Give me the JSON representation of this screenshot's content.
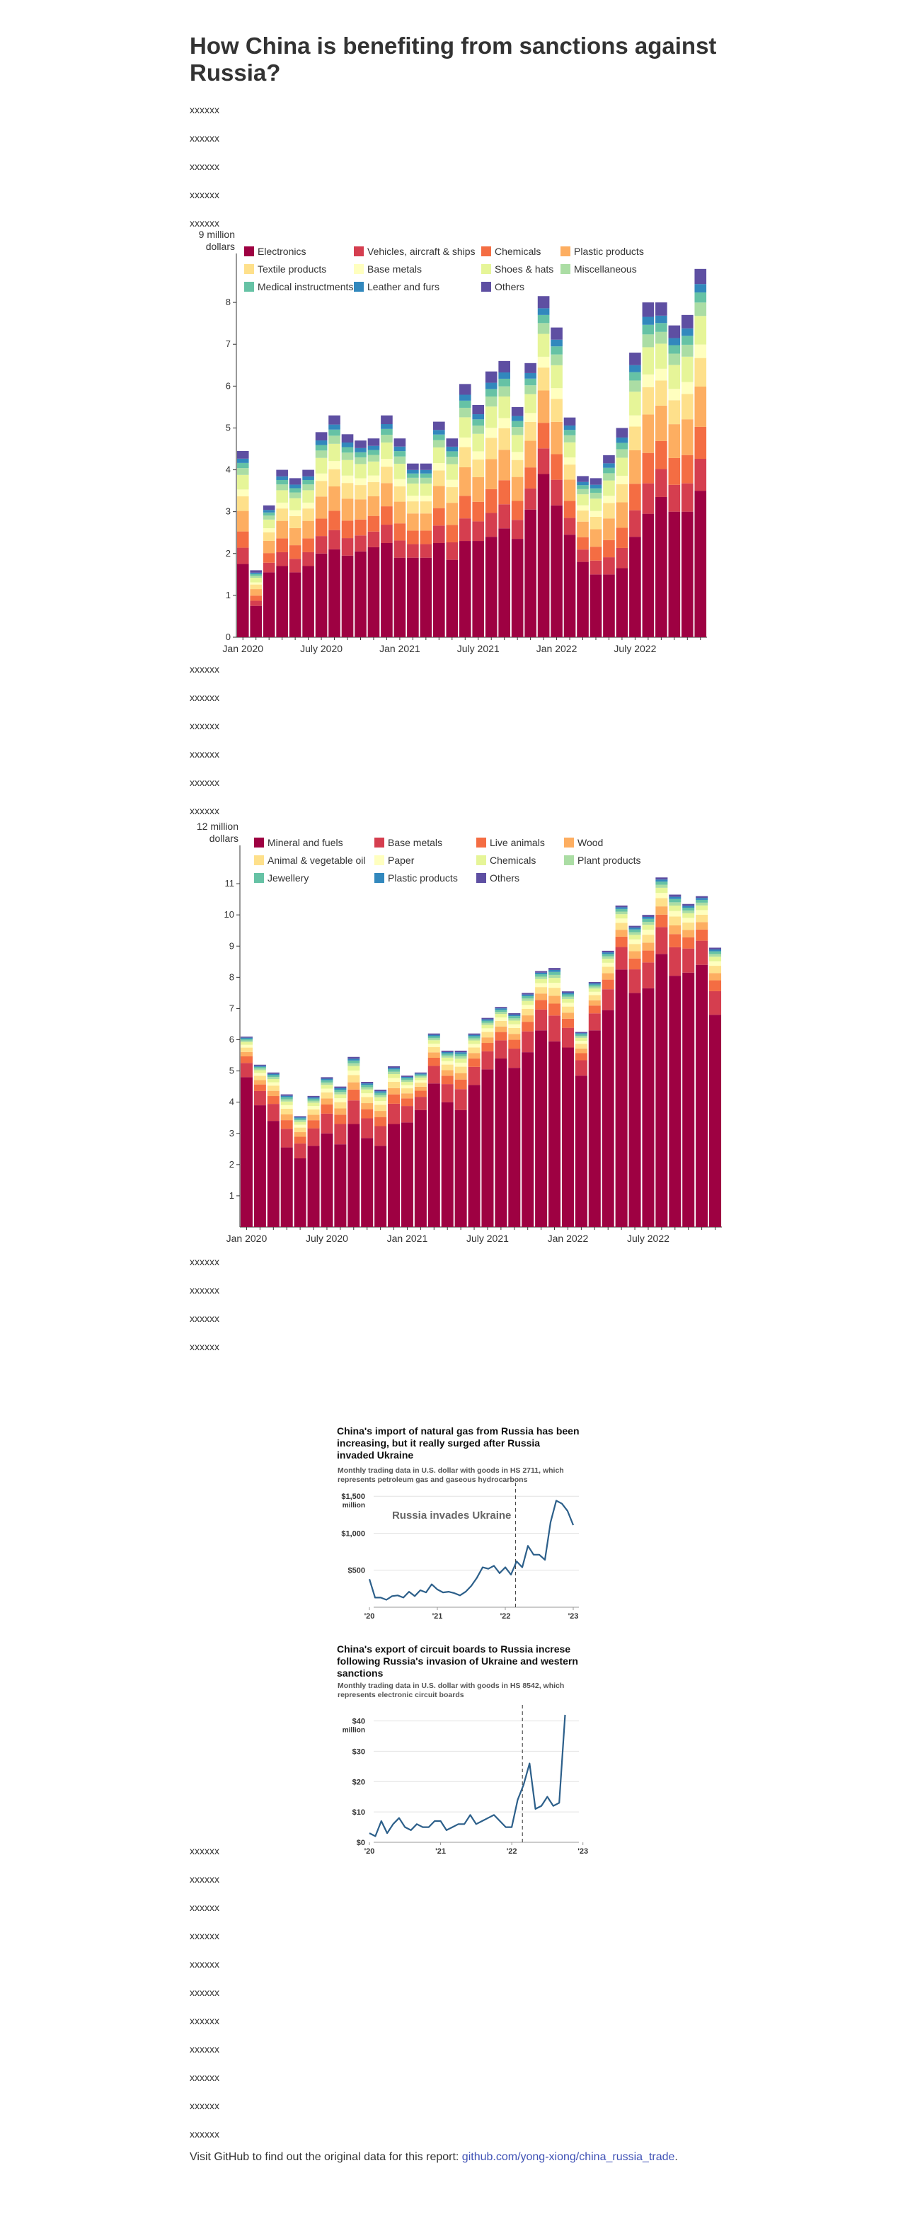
{
  "page": {
    "title": "How China is benefiting from sanctions against Russia?",
    "paragraphs_1": [
      "xxxxxx",
      "xxxxxx",
      "xxxxxx",
      "xxxxxx",
      "xxxxxx"
    ],
    "paragraphs_2": [
      "xxxxxx",
      "xxxxxx",
      "xxxxxx",
      "xxxxxx",
      "xxxxxx",
      "xxxxxx"
    ],
    "paragraphs_3": [
      "xxxxxx",
      "xxxxxx",
      "xxxxxx",
      "xxxxxx"
    ],
    "paragraphs_4": [
      "xxxxxx",
      "xxxxxx",
      "xxxxxx",
      "xxxxxx",
      "xxxxxx",
      "xxxxxx",
      "xxxxxx",
      "xxxxxx",
      "xxxxxx",
      "xxxxxx",
      "xxxxxx"
    ],
    "footer_text": "Visit GitHub to find out the original data for this report: ",
    "footer_link": "github.com/yong-xiong/china_russia_trade",
    "footer_end": "."
  },
  "colors": {
    "palette": [
      "#9e0142",
      "#d53e4f",
      "#f46d43",
      "#fdae61",
      "#fee08b",
      "#ffffbf",
      "#e6f598",
      "#abdda4",
      "#66c2a5",
      "#3288bd",
      "#5e4fa2"
    ],
    "line": "#2c5f8a"
  },
  "chart_data": [
    {
      "type": "bar",
      "stacked": true,
      "ylabel_top": "9 million",
      "ylabel_unit": "dollars",
      "ylim": [
        0,
        9
      ],
      "yticks": [
        "0",
        "1",
        "2",
        "3",
        "4",
        "5",
        "6",
        "7",
        "8"
      ],
      "xtick_labels": [
        "Jan 2020",
        "July 2020",
        "Jan 2021",
        "July 2021",
        "Jan 2022",
        "July 2022"
      ],
      "totals": [
        4.45,
        1.6,
        3.15,
        4.0,
        3.8,
        4.0,
        4.9,
        5.3,
        4.85,
        4.7,
        4.75,
        5.3,
        4.75,
        4.15,
        4.15,
        5.15,
        4.75,
        6.05,
        5.55,
        6.35,
        6.6,
        5.5,
        6.55,
        8.15,
        7.4,
        5.25,
        3.85,
        3.8,
        4.35,
        5.0,
        6.8,
        8.0,
        8.0,
        7.45,
        7.7,
        8.8
      ],
      "base_values": [
        1.75,
        0.75,
        1.55,
        1.7,
        1.55,
        1.7,
        2.0,
        2.1,
        1.95,
        2.05,
        2.15,
        2.25,
        1.9,
        1.9,
        1.9,
        2.25,
        1.85,
        2.3,
        2.3,
        2.4,
        2.6,
        2.35,
        3.05,
        3.9,
        3.15,
        2.45,
        1.8,
        1.5,
        1.5,
        1.65,
        2.4,
        2.95,
        3.35,
        3.0,
        3.0,
        3.5
      ],
      "shares": [
        0.34,
        0.095,
        0.095,
        0.12,
        0.085,
        0.04,
        0.085,
        0.04,
        0.03,
        0.025,
        0.045
      ],
      "legend": [
        {
          "name": "Electronics",
          "color": "#9e0142"
        },
        {
          "name": "Vehicles, aircraft & ships",
          "color": "#d53e4f"
        },
        {
          "name": "Chemicals",
          "color": "#f46d43"
        },
        {
          "name": "Plastic products",
          "color": "#fdae61"
        },
        {
          "name": "Textile products",
          "color": "#fee08b"
        },
        {
          "name": "Base metals",
          "color": "#ffffbf"
        },
        {
          "name": "Shoes & hats",
          "color": "#e6f598"
        },
        {
          "name": "Miscellaneous",
          "color": "#abdda4"
        },
        {
          "name": "Medical instructments",
          "color": "#66c2a5"
        },
        {
          "name": "Leather and furs",
          "color": "#3288bd"
        },
        {
          "name": "Others",
          "color": "#5e4fa2"
        }
      ]
    },
    {
      "type": "bar",
      "stacked": true,
      "ylabel_top": "12 million",
      "ylabel_unit": "dollars",
      "ylim": [
        0,
        12
      ],
      "yticks": [
        "1",
        "2",
        "3",
        "4",
        "5",
        "6",
        "7",
        "8",
        "9",
        "10",
        "11"
      ],
      "xtick_labels": [
        "Jan 2020",
        "July 2020",
        "Jan 2021",
        "July 2021",
        "Jan 2022",
        "July 2022"
      ],
      "totals": [
        6.1,
        5.2,
        4.95,
        4.25,
        3.55,
        4.2,
        4.8,
        4.5,
        5.45,
        4.65,
        4.4,
        5.15,
        4.85,
        4.95,
        6.2,
        5.65,
        5.65,
        6.2,
        6.7,
        7.05,
        6.85,
        7.5,
        8.2,
        8.3,
        7.55,
        6.25,
        7.85,
        8.85,
        10.3,
        9.65,
        10.0,
        11.2,
        10.65,
        10.35,
        10.6,
        8.95
      ],
      "base_values": [
        4.8,
        3.9,
        3.4,
        2.55,
        2.2,
        2.6,
        3.0,
        2.65,
        3.3,
        2.85,
        2.6,
        3.3,
        3.35,
        3.75,
        4.6,
        4.0,
        3.75,
        4.55,
        5.05,
        5.4,
        5.1,
        5.6,
        6.3,
        5.95,
        5.75,
        4.85,
        6.3,
        6.95,
        8.25,
        7.5,
        7.65,
        8.75,
        8.05,
        8.15,
        8.4,
        6.8
      ],
      "shares": [
        0.63,
        0.13,
        0.06,
        0.04,
        0.04,
        0.025,
        0.025,
        0.015,
        0.015,
        0.01,
        0.01
      ],
      "legend": [
        {
          "name": "Mineral and fuels",
          "color": "#9e0142"
        },
        {
          "name": "Base metals",
          "color": "#d53e4f"
        },
        {
          "name": "Live animals",
          "color": "#f46d43"
        },
        {
          "name": "Wood",
          "color": "#fdae61"
        },
        {
          "name": "Animal & vegetable oil",
          "color": "#fee08b"
        },
        {
          "name": "Paper",
          "color": "#ffffbf"
        },
        {
          "name": "Chemicals",
          "color": "#e6f598"
        },
        {
          "name": "Plant products",
          "color": "#abdda4"
        },
        {
          "name": "Jewellery",
          "color": "#66c2a5"
        },
        {
          "name": "Plastic products",
          "color": "#3288bd"
        },
        {
          "name": "Others",
          "color": "#5e4fa2"
        }
      ]
    },
    {
      "type": "line",
      "title": "China's import of natural gas from Russia has been increasing, but it really surged after Russia invaded Ukraine",
      "subtitle": "Monthly trading data in U.S. dollar with goods in HS 2711, which represents petroleum gas and gaseous hydrocarbons",
      "yticks": [
        "$500",
        "$1,000",
        "$1,500"
      ],
      "ytick_values": [
        500,
        1000,
        1500
      ],
      "ylabel_unit": "million",
      "ylim": [
        0,
        1550
      ],
      "xticks": [
        "'20",
        "'21",
        "'22",
        "'23"
      ],
      "annotation": "Russia invades Ukraine",
      "event_month_index": 25.8,
      "values": [
        380,
        130,
        130,
        100,
        150,
        160,
        130,
        210,
        150,
        230,
        200,
        310,
        240,
        200,
        210,
        190,
        160,
        210,
        290,
        400,
        540,
        520,
        560,
        460,
        540,
        440,
        620,
        540,
        830,
        710,
        710,
        640,
        1150,
        1440,
        1400,
        1300,
        1110
      ]
    },
    {
      "type": "line",
      "title": "China's export of circuit boards to Russia increse following Russia's invasion of Ukraine and western sanctions",
      "subtitle": "Monthly trading data in U.S. dollar with goods in HS 8542, which represents electronic circuit boards",
      "yticks": [
        "$0",
        "$10",
        "$20",
        "$30",
        "$40"
      ],
      "ytick_values": [
        0,
        10,
        20,
        30,
        40
      ],
      "ylabel_unit": "million",
      "ylim": [
        0,
        42
      ],
      "xticks": [
        "'20",
        "'21",
        "'22",
        "'23"
      ],
      "event_month_index": 25.8,
      "values": [
        3,
        2,
        7,
        3,
        6,
        8,
        5,
        4,
        6,
        5,
        5,
        7,
        7,
        4,
        5,
        6,
        6,
        9,
        6,
        7,
        8,
        9,
        7,
        5,
        5,
        14,
        19,
        26,
        11,
        12,
        15,
        12,
        13,
        42
      ]
    }
  ]
}
